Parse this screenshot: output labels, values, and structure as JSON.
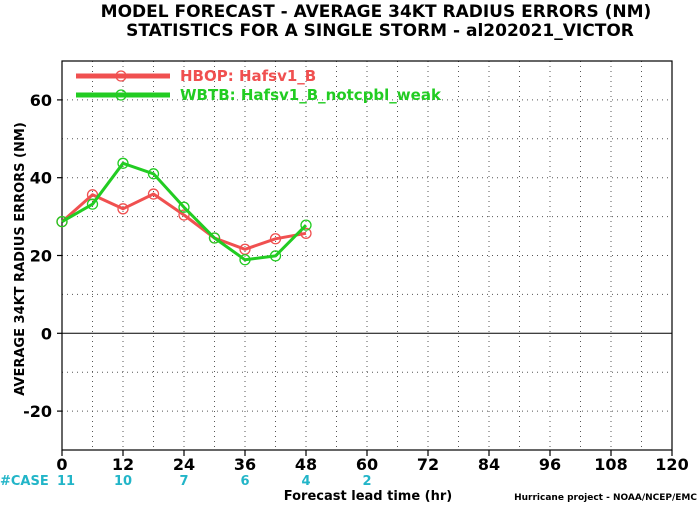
{
  "chart_data": {
    "type": "line",
    "title": "MODEL FORECAST - AVERAGE 34KT RADIUS ERRORS (NM)",
    "subtitle": "STATISTICS FOR A SINGLE STORM - al202021_VICTOR",
    "xlabel": "Forecast lead time (hr)",
    "ylabel": "AVERAGE 34KT RADIUS ERRORS (NM)",
    "xlim": [
      0,
      120
    ],
    "ylim": [
      -30,
      70
    ],
    "x_ticks": [
      "0",
      "12",
      "24",
      "36",
      "48",
      "60",
      "72",
      "84",
      "96",
      "108",
      "120"
    ],
    "y_ticks": [
      "-20",
      "0",
      "20",
      "40",
      "60"
    ],
    "grid": true,
    "zero_line": true,
    "legend_position": "top-left",
    "case_label": "#CASE",
    "case_counts": [
      {
        "lead": 0,
        "count": "11"
      },
      {
        "lead": 12,
        "count": "10"
      },
      {
        "lead": 24,
        "count": "7"
      },
      {
        "lead": 36,
        "count": "6"
      },
      {
        "lead": 48,
        "count": "4"
      },
      {
        "lead": 60,
        "count": "2"
      }
    ],
    "series": [
      {
        "name": "HBOP: Hafsv1_B",
        "color": "#f05050",
        "x": [
          0,
          6,
          12,
          18,
          24,
          30,
          36,
          42,
          48
        ],
        "y": [
          28.7,
          35.6,
          32.0,
          35.8,
          30.4,
          24.5,
          21.6,
          24.3,
          25.7
        ]
      },
      {
        "name": "WBTB: Hafsv1_B_notcpbl_weak",
        "color": "#22cc22",
        "x": [
          0,
          6,
          12,
          18,
          24,
          30,
          36,
          42,
          48
        ],
        "y": [
          28.7,
          33.2,
          43.7,
          41.0,
          32.4,
          24.5,
          18.9,
          19.9,
          27.8
        ]
      }
    ],
    "credit": "Hurricane project - NOAA/NCEP/EMC"
  }
}
